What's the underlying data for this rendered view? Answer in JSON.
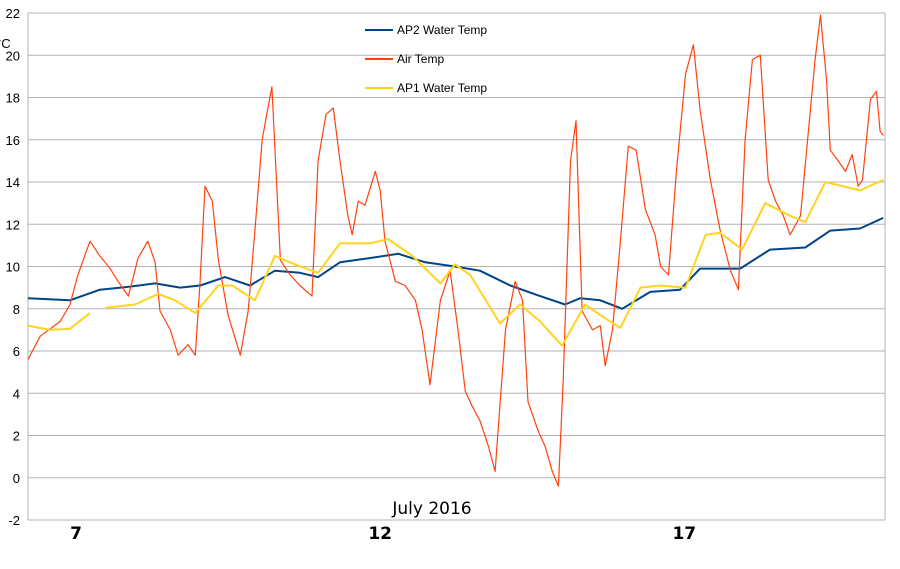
{
  "chart_data": {
    "type": "line",
    "xlabel": "July 2016",
    "ylabel": "°C",
    "xlim": [
      6.21,
      20.3
    ],
    "ylim": [
      -2,
      22
    ],
    "yticks": [
      -2,
      0,
      2,
      4,
      6,
      8,
      10,
      12,
      14,
      16,
      18,
      20,
      22
    ],
    "xticks": [
      {
        "value": 7,
        "label": "7"
      },
      {
        "value": 12,
        "label": "12"
      },
      {
        "value": 17,
        "label": "17"
      }
    ],
    "grid": "horizontal",
    "legend_placement": "top-center",
    "series": [
      {
        "name": "AP2 Water Temp",
        "color": "#004586",
        "points": [
          [
            6.21,
            8.5
          ],
          [
            6.9,
            8.4
          ],
          [
            7.39,
            8.9
          ],
          [
            7.89,
            9.05
          ],
          [
            8.3,
            9.2
          ],
          [
            8.71,
            9.0
          ],
          [
            9.04,
            9.1
          ],
          [
            9.45,
            9.5
          ],
          [
            9.86,
            9.1
          ],
          [
            10.27,
            9.8
          ],
          [
            10.68,
            9.7
          ],
          [
            10.98,
            9.5
          ],
          [
            11.34,
            10.2
          ],
          [
            11.84,
            10.4
          ],
          [
            12.3,
            10.6
          ],
          [
            12.74,
            10.2
          ],
          [
            13.23,
            10.0
          ],
          [
            13.64,
            9.8
          ],
          [
            14.14,
            9.1
          ],
          [
            14.63,
            8.6
          ],
          [
            15.04,
            8.2
          ],
          [
            15.29,
            8.5
          ],
          [
            15.62,
            8.4
          ],
          [
            15.98,
            8.0
          ],
          [
            16.44,
            8.8
          ],
          [
            16.93,
            8.9
          ],
          [
            17.26,
            9.9
          ],
          [
            17.92,
            9.9
          ],
          [
            18.41,
            10.8
          ],
          [
            18.99,
            10.9
          ],
          [
            19.4,
            11.7
          ],
          [
            19.89,
            11.8
          ],
          [
            20.27,
            12.3
          ]
        ]
      },
      {
        "name": "Air Temp",
        "color": "#ff420e",
        "points": [
          [
            6.21,
            5.6
          ],
          [
            6.41,
            6.7
          ],
          [
            6.74,
            7.4
          ],
          [
            6.9,
            8.2
          ],
          [
            7.03,
            9.6
          ],
          [
            7.23,
            11.2
          ],
          [
            7.39,
            10.5
          ],
          [
            7.56,
            9.9
          ],
          [
            7.69,
            9.3
          ],
          [
            7.86,
            8.6
          ],
          [
            8.02,
            10.4
          ],
          [
            8.18,
            11.2
          ],
          [
            8.3,
            10.2
          ],
          [
            8.38,
            7.9
          ],
          [
            8.55,
            7.0
          ],
          [
            8.68,
            5.8
          ],
          [
            8.84,
            6.3
          ],
          [
            8.96,
            5.8
          ],
          [
            9.04,
            9.3
          ],
          [
            9.12,
            13.8
          ],
          [
            9.24,
            13.1
          ],
          [
            9.34,
            10.3
          ],
          [
            9.5,
            7.7
          ],
          [
            9.7,
            5.8
          ],
          [
            9.83,
            7.9
          ],
          [
            9.94,
            11.7
          ],
          [
            10.06,
            16.0
          ],
          [
            10.16,
            17.6
          ],
          [
            10.22,
            18.5
          ],
          [
            10.36,
            10.3
          ],
          [
            10.52,
            9.6
          ],
          [
            10.68,
            9.1
          ],
          [
            10.88,
            8.6
          ],
          [
            10.98,
            15.0
          ],
          [
            11.11,
            17.2
          ],
          [
            11.23,
            17.5
          ],
          [
            11.34,
            15.0
          ],
          [
            11.47,
            12.4
          ],
          [
            11.54,
            11.5
          ],
          [
            11.64,
            13.1
          ],
          [
            11.75,
            12.9
          ],
          [
            11.92,
            14.5
          ],
          [
            12.0,
            13.6
          ],
          [
            12.08,
            11.2
          ],
          [
            12.25,
            9.3
          ],
          [
            12.41,
            9.1
          ],
          [
            12.58,
            8.4
          ],
          [
            12.69,
            7.0
          ],
          [
            12.82,
            4.4
          ],
          [
            12.99,
            8.4
          ],
          [
            13.15,
            9.8
          ],
          [
            13.28,
            7.0
          ],
          [
            13.4,
            4.1
          ],
          [
            13.51,
            3.4
          ],
          [
            13.64,
            2.7
          ],
          [
            13.78,
            1.5
          ],
          [
            13.89,
            0.3
          ],
          [
            14.06,
            7.0
          ],
          [
            14.22,
            9.3
          ],
          [
            14.34,
            8.4
          ],
          [
            14.43,
            3.6
          ],
          [
            14.6,
            2.2
          ],
          [
            14.71,
            1.5
          ],
          [
            14.83,
            0.3
          ],
          [
            14.93,
            -0.4
          ],
          [
            15.01,
            4.6
          ],
          [
            15.13,
            15.0
          ],
          [
            15.22,
            16.9
          ],
          [
            15.32,
            7.9
          ],
          [
            15.49,
            7.0
          ],
          [
            15.62,
            7.2
          ],
          [
            15.7,
            5.3
          ],
          [
            15.82,
            7.0
          ],
          [
            15.95,
            11.2
          ],
          [
            16.08,
            15.7
          ],
          [
            16.21,
            15.5
          ],
          [
            16.36,
            12.7
          ],
          [
            16.52,
            11.5
          ],
          [
            16.61,
            10.0
          ],
          [
            16.74,
            9.6
          ],
          [
            16.87,
            14.5
          ],
          [
            17.02,
            19.1
          ],
          [
            17.15,
            20.5
          ],
          [
            17.26,
            17.4
          ],
          [
            17.43,
            14.1
          ],
          [
            17.59,
            11.7
          ],
          [
            17.76,
            9.8
          ],
          [
            17.89,
            8.9
          ],
          [
            18.0,
            16.0
          ],
          [
            18.12,
            19.8
          ],
          [
            18.25,
            20.0
          ],
          [
            18.38,
            14.1
          ],
          [
            18.5,
            13.1
          ],
          [
            18.63,
            12.4
          ],
          [
            18.74,
            11.5
          ],
          [
            18.91,
            12.4
          ],
          [
            19.04,
            16.4
          ],
          [
            19.15,
            19.8
          ],
          [
            19.24,
            21.9
          ],
          [
            19.34,
            18.8
          ],
          [
            19.4,
            15.5
          ],
          [
            19.53,
            15.0
          ],
          [
            19.65,
            14.5
          ],
          [
            19.76,
            15.3
          ],
          [
            19.86,
            13.8
          ],
          [
            19.93,
            14.1
          ],
          [
            20.06,
            17.9
          ],
          [
            20.16,
            18.3
          ],
          [
            20.22,
            16.4
          ],
          [
            20.27,
            16.2
          ]
        ]
      },
      {
        "name": "AP1 Water Temp",
        "color": "#ffd320",
        "points": [
          [
            6.21,
            7.2
          ],
          [
            6.57,
            7.0
          ],
          [
            6.9,
            7.05
          ],
          [
            7.23,
            7.8
          ],
          null,
          [
            7.48,
            8.05
          ],
          [
            7.97,
            8.2
          ],
          [
            8.35,
            8.7
          ],
          [
            8.63,
            8.4
          ],
          [
            8.96,
            7.8
          ],
          [
            9.34,
            9.1
          ],
          [
            9.57,
            9.1
          ],
          [
            9.94,
            8.4
          ],
          [
            10.27,
            10.5
          ],
          [
            10.6,
            10.1
          ],
          [
            10.98,
            9.7
          ],
          [
            11.34,
            11.1
          ],
          [
            11.84,
            11.1
          ],
          [
            12.13,
            11.3
          ],
          [
            12.53,
            10.5
          ],
          [
            12.99,
            9.2
          ],
          [
            13.23,
            10.1
          ],
          [
            13.48,
            9.6
          ],
          [
            13.97,
            7.3
          ],
          [
            14.3,
            8.2
          ],
          [
            14.63,
            7.4
          ],
          [
            14.99,
            6.25
          ],
          [
            15.37,
            8.2
          ],
          [
            15.62,
            7.7
          ],
          [
            15.95,
            7.1
          ],
          [
            16.28,
            9.0
          ],
          [
            16.61,
            9.1
          ],
          [
            17.02,
            9.0
          ],
          [
            17.35,
            11.5
          ],
          [
            17.59,
            11.6
          ],
          [
            17.95,
            10.8
          ],
          [
            18.33,
            13.0
          ],
          [
            18.74,
            12.4
          ],
          [
            18.99,
            12.1
          ],
          [
            19.32,
            14.0
          ],
          [
            19.89,
            13.6
          ],
          [
            20.27,
            14.1
          ]
        ]
      }
    ]
  }
}
